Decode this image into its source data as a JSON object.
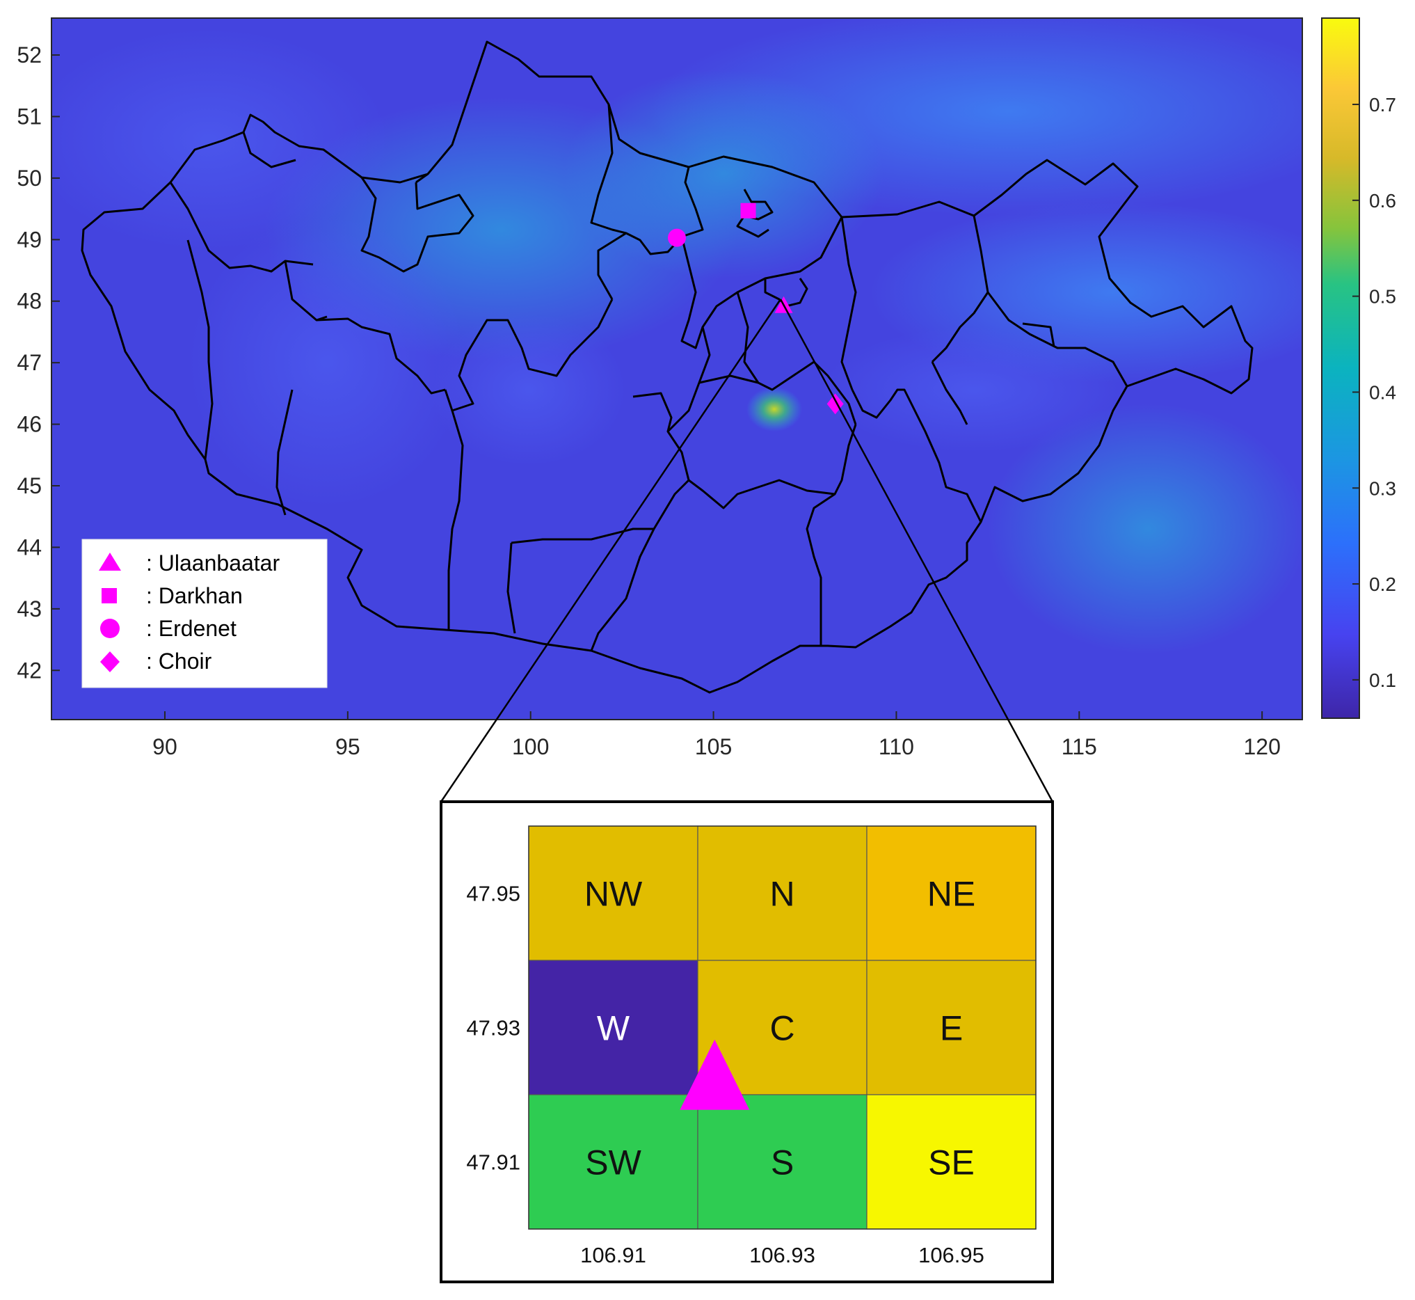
{
  "chart_data": [
    {
      "type": "heatmap",
      "title": "",
      "xlabel": "",
      "ylabel": "",
      "xlim": [
        86.9,
        121.1
      ],
      "ylim": [
        41.2,
        52.6
      ],
      "xticks": [
        90,
        95,
        100,
        105,
        110,
        115,
        120
      ],
      "yticks": [
        42,
        43,
        44,
        45,
        46,
        47,
        48,
        49,
        50,
        51,
        52
      ],
      "colorbar": {
        "range": [
          0.06,
          0.79
        ],
        "ticks": [
          0.1,
          0.2,
          0.3,
          0.4,
          0.5,
          0.6,
          0.7
        ],
        "colormap": "parula"
      },
      "grid": false,
      "legend_position": "bottom-left",
      "legend": [
        {
          "symbol": "triangle",
          "label": ": Ulaanbaatar"
        },
        {
          "symbol": "square",
          "label": ": Darkhan"
        },
        {
          "symbol": "circle",
          "label": ": Erdenet"
        },
        {
          "symbol": "diamond",
          "label": ": Choir"
        }
      ],
      "markers": [
        {
          "name": "Ulaanbaatar",
          "symbol": "triangle",
          "lon": 106.92,
          "lat": 47.92
        },
        {
          "name": "Darkhan",
          "symbol": "square",
          "lon": 105.95,
          "lat": 49.47
        },
        {
          "name": "Erdenet",
          "symbol": "circle",
          "lon": 104.0,
          "lat": 49.03
        },
        {
          "name": "Choir",
          "symbol": "diamond",
          "lon": 108.33,
          "lat": 46.33
        }
      ],
      "marker_color": "#ff00ff"
    },
    {
      "type": "heatmap",
      "title": "",
      "xlabel": "",
      "ylabel": "",
      "x": [
        106.91,
        106.93,
        106.95
      ],
      "y": [
        47.95,
        47.93,
        47.91
      ],
      "cells": [
        [
          {
            "label": "NW",
            "color": "#e1bd00"
          },
          {
            "label": "N",
            "color": "#e1bd00"
          },
          {
            "label": "NE",
            "color": "#f2be00"
          }
        ],
        [
          {
            "label": "W",
            "color": "#4424a6"
          },
          {
            "label": "C",
            "color": "#e1bd00"
          },
          {
            "label": "E",
            "color": "#e1bd00"
          }
        ],
        [
          {
            "label": "SW",
            "color": "#2ecc52"
          },
          {
            "label": "S",
            "color": "#2ecc52"
          },
          {
            "label": "SE",
            "color": "#f7f700"
          }
        ]
      ],
      "marker": {
        "name": "Ulaanbaatar",
        "symbol": "triangle",
        "lon": 106.922,
        "lat": 47.922
      }
    }
  ]
}
